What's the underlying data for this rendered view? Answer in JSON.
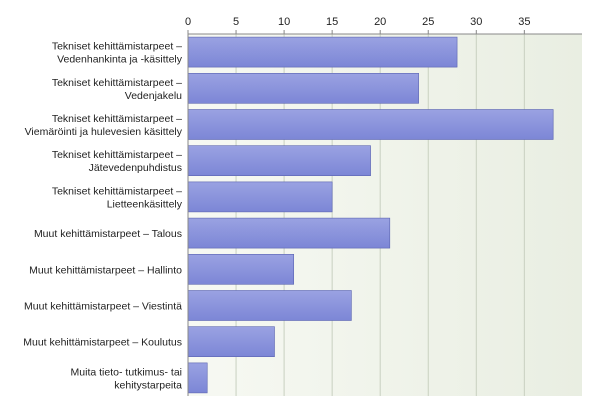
{
  "chart_data": {
    "type": "bar",
    "orientation": "horizontal",
    "categories": [
      [
        "Tekniset kehittämistarpeet –",
        "Vedenhankinta ja -käsittely"
      ],
      [
        "Tekniset kehittämistarpeet –",
        "Vedenjakelu"
      ],
      [
        "Tekniset kehittämistarpeet –",
        "Viemäröinti ja hulevesien käsittely"
      ],
      [
        "Tekniset kehittämistarpeet –",
        "Jätevedenpuhdistus"
      ],
      [
        "Tekniset kehittämistarpeet –",
        "Lietteenkäsittely"
      ],
      [
        "Muut kehittämistarpeet – Talous"
      ],
      [
        "Muut kehittämistarpeet – Hallinto"
      ],
      [
        "Muut kehittämistarpeet – Viestintä"
      ],
      [
        "Muut kehittämistarpeet – Koulutus"
      ],
      [
        "Muita tieto- tutkimus- tai",
        "kehitystarpeita"
      ]
    ],
    "values": [
      28,
      24,
      38,
      19,
      15,
      21,
      11,
      17,
      9,
      2
    ],
    "xticks": [
      0,
      5,
      10,
      15,
      20,
      25,
      30,
      35
    ],
    "xlim": [
      0,
      41
    ],
    "axis_position": "top",
    "grid": true,
    "title": "",
    "xlabel": "",
    "ylabel": "",
    "colors": {
      "bar": "#7c86d6",
      "bar_top": "#9aa2e2",
      "bar_edge": "#5a63b0",
      "plot_bg_left": "#f7f9f3",
      "plot_bg_right": "#e9eee2",
      "grid": "#c8d0c0",
      "axis": "#888888",
      "text": "#222222"
    }
  }
}
